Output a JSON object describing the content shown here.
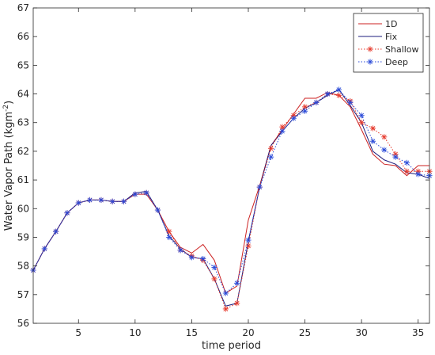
{
  "chart_data": {
    "type": "line",
    "xlabel": "time period",
    "ylabel": "Water Vapor Path (kgm",
    "ylabel_sup": "-2",
    "ylabel_suffix": ")",
    "xlim": [
      1,
      36
    ],
    "ylim": [
      56,
      67
    ],
    "xticks": [
      5,
      10,
      15,
      20,
      25,
      30,
      35
    ],
    "yticks": [
      56,
      57,
      58,
      59,
      60,
      61,
      62,
      63,
      64,
      65,
      66,
      67
    ],
    "grid": false,
    "legend_position": "top-right",
    "x": [
      1,
      2,
      3,
      4,
      5,
      6,
      7,
      8,
      9,
      10,
      11,
      12,
      13,
      14,
      15,
      16,
      17,
      18,
      19,
      20,
      21,
      22,
      23,
      24,
      25,
      26,
      27,
      28,
      29,
      30,
      31,
      32,
      33,
      34,
      35,
      36
    ],
    "series": [
      {
        "name": "1D",
        "color": "#cc2222",
        "marker": "none",
        "linestyle": "solid",
        "values": [
          57.85,
          58.6,
          59.2,
          59.85,
          60.2,
          60.3,
          60.3,
          60.25,
          60.25,
          60.5,
          60.5,
          59.95,
          59.2,
          58.65,
          58.45,
          58.75,
          58.2,
          57.05,
          57.3,
          59.6,
          60.8,
          62.2,
          62.75,
          63.3,
          63.85,
          63.85,
          64.05,
          63.95,
          63.55,
          62.75,
          61.9,
          61.55,
          61.5,
          61.15,
          61.5,
          61.5
        ]
      },
      {
        "name": "Fix",
        "color": "#1c1c7c",
        "marker": "none",
        "linestyle": "solid",
        "values": [
          57.85,
          58.6,
          59.2,
          59.85,
          60.2,
          60.3,
          60.3,
          60.25,
          60.25,
          60.55,
          60.6,
          59.95,
          59.05,
          58.6,
          58.3,
          58.25,
          57.55,
          56.6,
          56.7,
          58.85,
          60.75,
          62.2,
          62.7,
          63.15,
          63.5,
          63.7,
          63.95,
          64.15,
          63.6,
          63.0,
          62.0,
          61.7,
          61.55,
          61.25,
          61.2,
          61.05
        ]
      },
      {
        "name": "Shallow",
        "color": "#e63b2e",
        "marker": "star",
        "linestyle": "dotted",
        "values": [
          57.85,
          58.6,
          59.2,
          59.85,
          60.2,
          60.3,
          60.3,
          60.25,
          60.25,
          60.5,
          60.55,
          59.95,
          59.2,
          58.55,
          58.35,
          58.2,
          57.55,
          56.5,
          56.7,
          58.7,
          60.75,
          62.1,
          62.85,
          63.25,
          63.55,
          63.7,
          64.0,
          63.95,
          63.75,
          63.0,
          62.8,
          62.5,
          61.9,
          61.3,
          61.3,
          61.3
        ]
      },
      {
        "name": "Deep",
        "color": "#2a4ad8",
        "marker": "star",
        "linestyle": "dotted",
        "values": [
          57.85,
          58.6,
          59.2,
          59.85,
          60.2,
          60.3,
          60.3,
          60.25,
          60.25,
          60.5,
          60.55,
          59.95,
          59.0,
          58.55,
          58.3,
          58.25,
          57.95,
          57.05,
          57.4,
          58.9,
          60.75,
          61.8,
          62.7,
          63.15,
          63.4,
          63.7,
          64.0,
          64.15,
          63.7,
          63.25,
          62.35,
          62.05,
          61.8,
          61.6,
          61.2,
          61.15
        ]
      }
    ]
  }
}
